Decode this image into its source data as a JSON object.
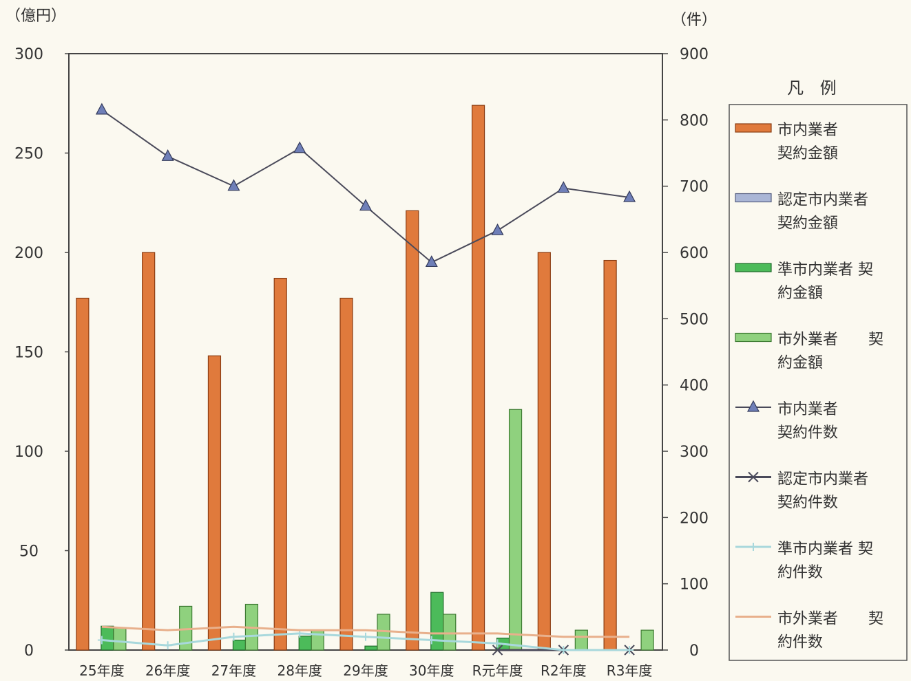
{
  "chart_data": {
    "type": "bar",
    "left_unit": "（億円）",
    "right_unit": "（件）",
    "categories": [
      "25年度",
      "26年度",
      "27年度",
      "28年度",
      "29年度",
      "30年度",
      "R元年度",
      "R2年度",
      "R3年度"
    ],
    "y_left": {
      "min": 0,
      "max": 300,
      "ticks": [
        0,
        50,
        100,
        150,
        200,
        250,
        300
      ]
    },
    "y_right": {
      "min": 0,
      "max": 900,
      "ticks": [
        0,
        100,
        200,
        300,
        400,
        500,
        600,
        700,
        800,
        900
      ]
    },
    "bar_series": [
      {
        "legend": [
          "市内業者",
          "契約金額"
        ],
        "color": "#e07a3c",
        "stroke": "#8a3c12",
        "values": [
          177,
          200,
          148,
          187,
          177,
          221,
          274,
          200,
          196
        ]
      },
      {
        "legend": [
          "認定市内業者",
          "契約金額"
        ],
        "color": "#aab6d6",
        "stroke": "#555e80",
        "values": [
          0,
          0,
          0,
          0,
          0,
          0,
          0,
          0,
          0
        ]
      },
      {
        "legend": [
          "準市内業者 契",
          "約金額"
        ],
        "color": "#4cbb5a",
        "stroke": "#1f6b2a",
        "values": [
          12,
          0,
          5,
          7,
          2,
          29,
          6,
          0,
          0
        ]
      },
      {
        "legend": [
          "市外業者　　契",
          "約金額"
        ],
        "color": "#8fd17e",
        "stroke": "#3d7a32",
        "values": [
          11,
          22,
          23,
          10,
          18,
          18,
          121,
          10,
          10
        ]
      }
    ],
    "line_series": [
      {
        "legend": [
          "市内業者",
          "契約件数"
        ],
        "color": "#4a4a5a",
        "marker": "triangle",
        "values": [
          815,
          745,
          700,
          757,
          670,
          585,
          633,
          697,
          683
        ]
      },
      {
        "legend": [
          "認定市内業者",
          "契約件数"
        ],
        "color": "#4a4a5a",
        "marker": "x",
        "values": [
          null,
          null,
          null,
          null,
          null,
          null,
          0,
          0,
          0
        ]
      },
      {
        "legend": [
          "準市内業者 契",
          "約件数"
        ],
        "color": "#a8d8dc",
        "marker": "plus",
        "values": [
          15,
          7,
          20,
          25,
          20,
          15,
          10,
          0,
          0
        ]
      },
      {
        "legend": [
          "市外業者　　契",
          "約件数"
        ],
        "color": "#e8b08c",
        "marker": "none",
        "values": [
          35,
          30,
          35,
          30,
          30,
          25,
          25,
          20,
          20
        ]
      }
    ],
    "legend_title": "凡 例"
  }
}
